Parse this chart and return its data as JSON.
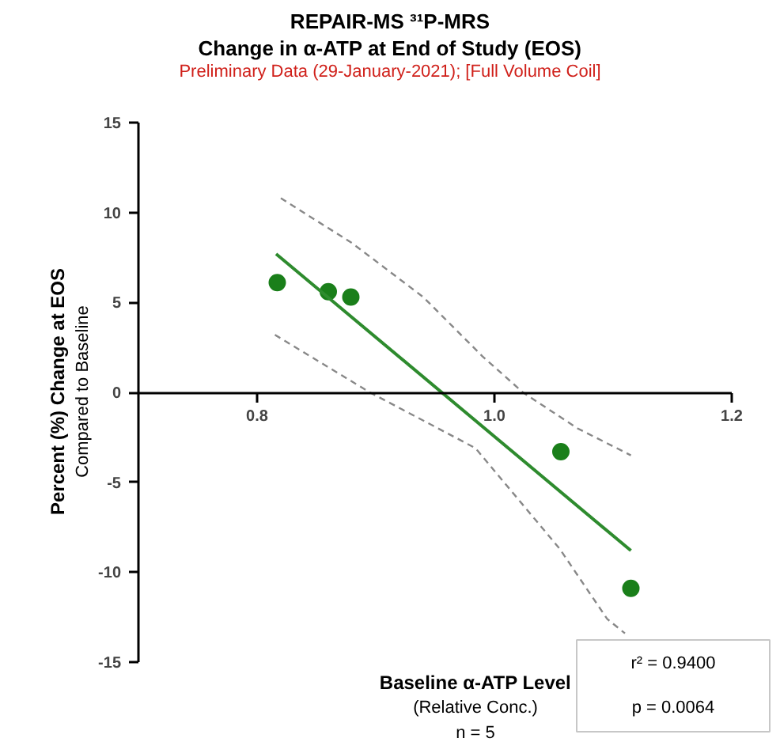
{
  "chart_data": {
    "type": "scatter",
    "title": "REPAIR-MS ³¹P-MRS",
    "subtitle": "Change in α-ATP at End of Study (EOS)",
    "annotations": [
      "Preliminary Data (29-January-2021); [Full Volume Coil]",
      "Compared to Baseline",
      "(Relative Conc.)",
      "n = 5",
      "r² = 0.9400",
      "p = 0.0064"
    ],
    "xlabel": "Baseline α-ATP Level",
    "ylabel": "Percent (%) Change at EOS",
    "series": [
      {
        "color": "#1a7f1a",
        "marker": "circle",
        "x": [
          0.817,
          0.86,
          0.879,
          1.056,
          1.115
        ],
        "values": [
          6.1,
          5.6,
          5.3,
          -3.3,
          -10.9
        ]
      },
      {
        "type": "line",
        "color": "#2e8b2e",
        "line_style": "solid",
        "x": [
          0.816,
          1.115
        ],
        "values": [
          7.7,
          -8.8
        ]
      },
      {
        "type": "line",
        "color": "#888888",
        "line_style": "dashed",
        "x": [
          0.82,
          0.88,
          0.94,
          0.99,
          1.024,
          1.07,
          1.115
        ],
        "values": [
          10.8,
          8.3,
          5.3,
          2.0,
          0,
          -2.0,
          -3.5
        ]
      },
      {
        "type": "line",
        "color": "#888888",
        "line_style": "dashed",
        "x": [
          0.815,
          0.895,
          0.984,
          1.055,
          1.095,
          1.11
        ],
        "values": [
          3.2,
          0,
          -3.1,
          -8.7,
          -12.6,
          -13.4
        ]
      }
    ],
    "xlim": [
      0.7,
      1.2
    ],
    "xticks": [
      0.8,
      {
        "value": 1.0,
        "label": "1.0"
      },
      1.2
    ],
    "ylim": [
      -15,
      15
    ],
    "yticks": [
      -15,
      -10,
      -5,
      0,
      5,
      10,
      15
    ],
    "grid": false
  }
}
